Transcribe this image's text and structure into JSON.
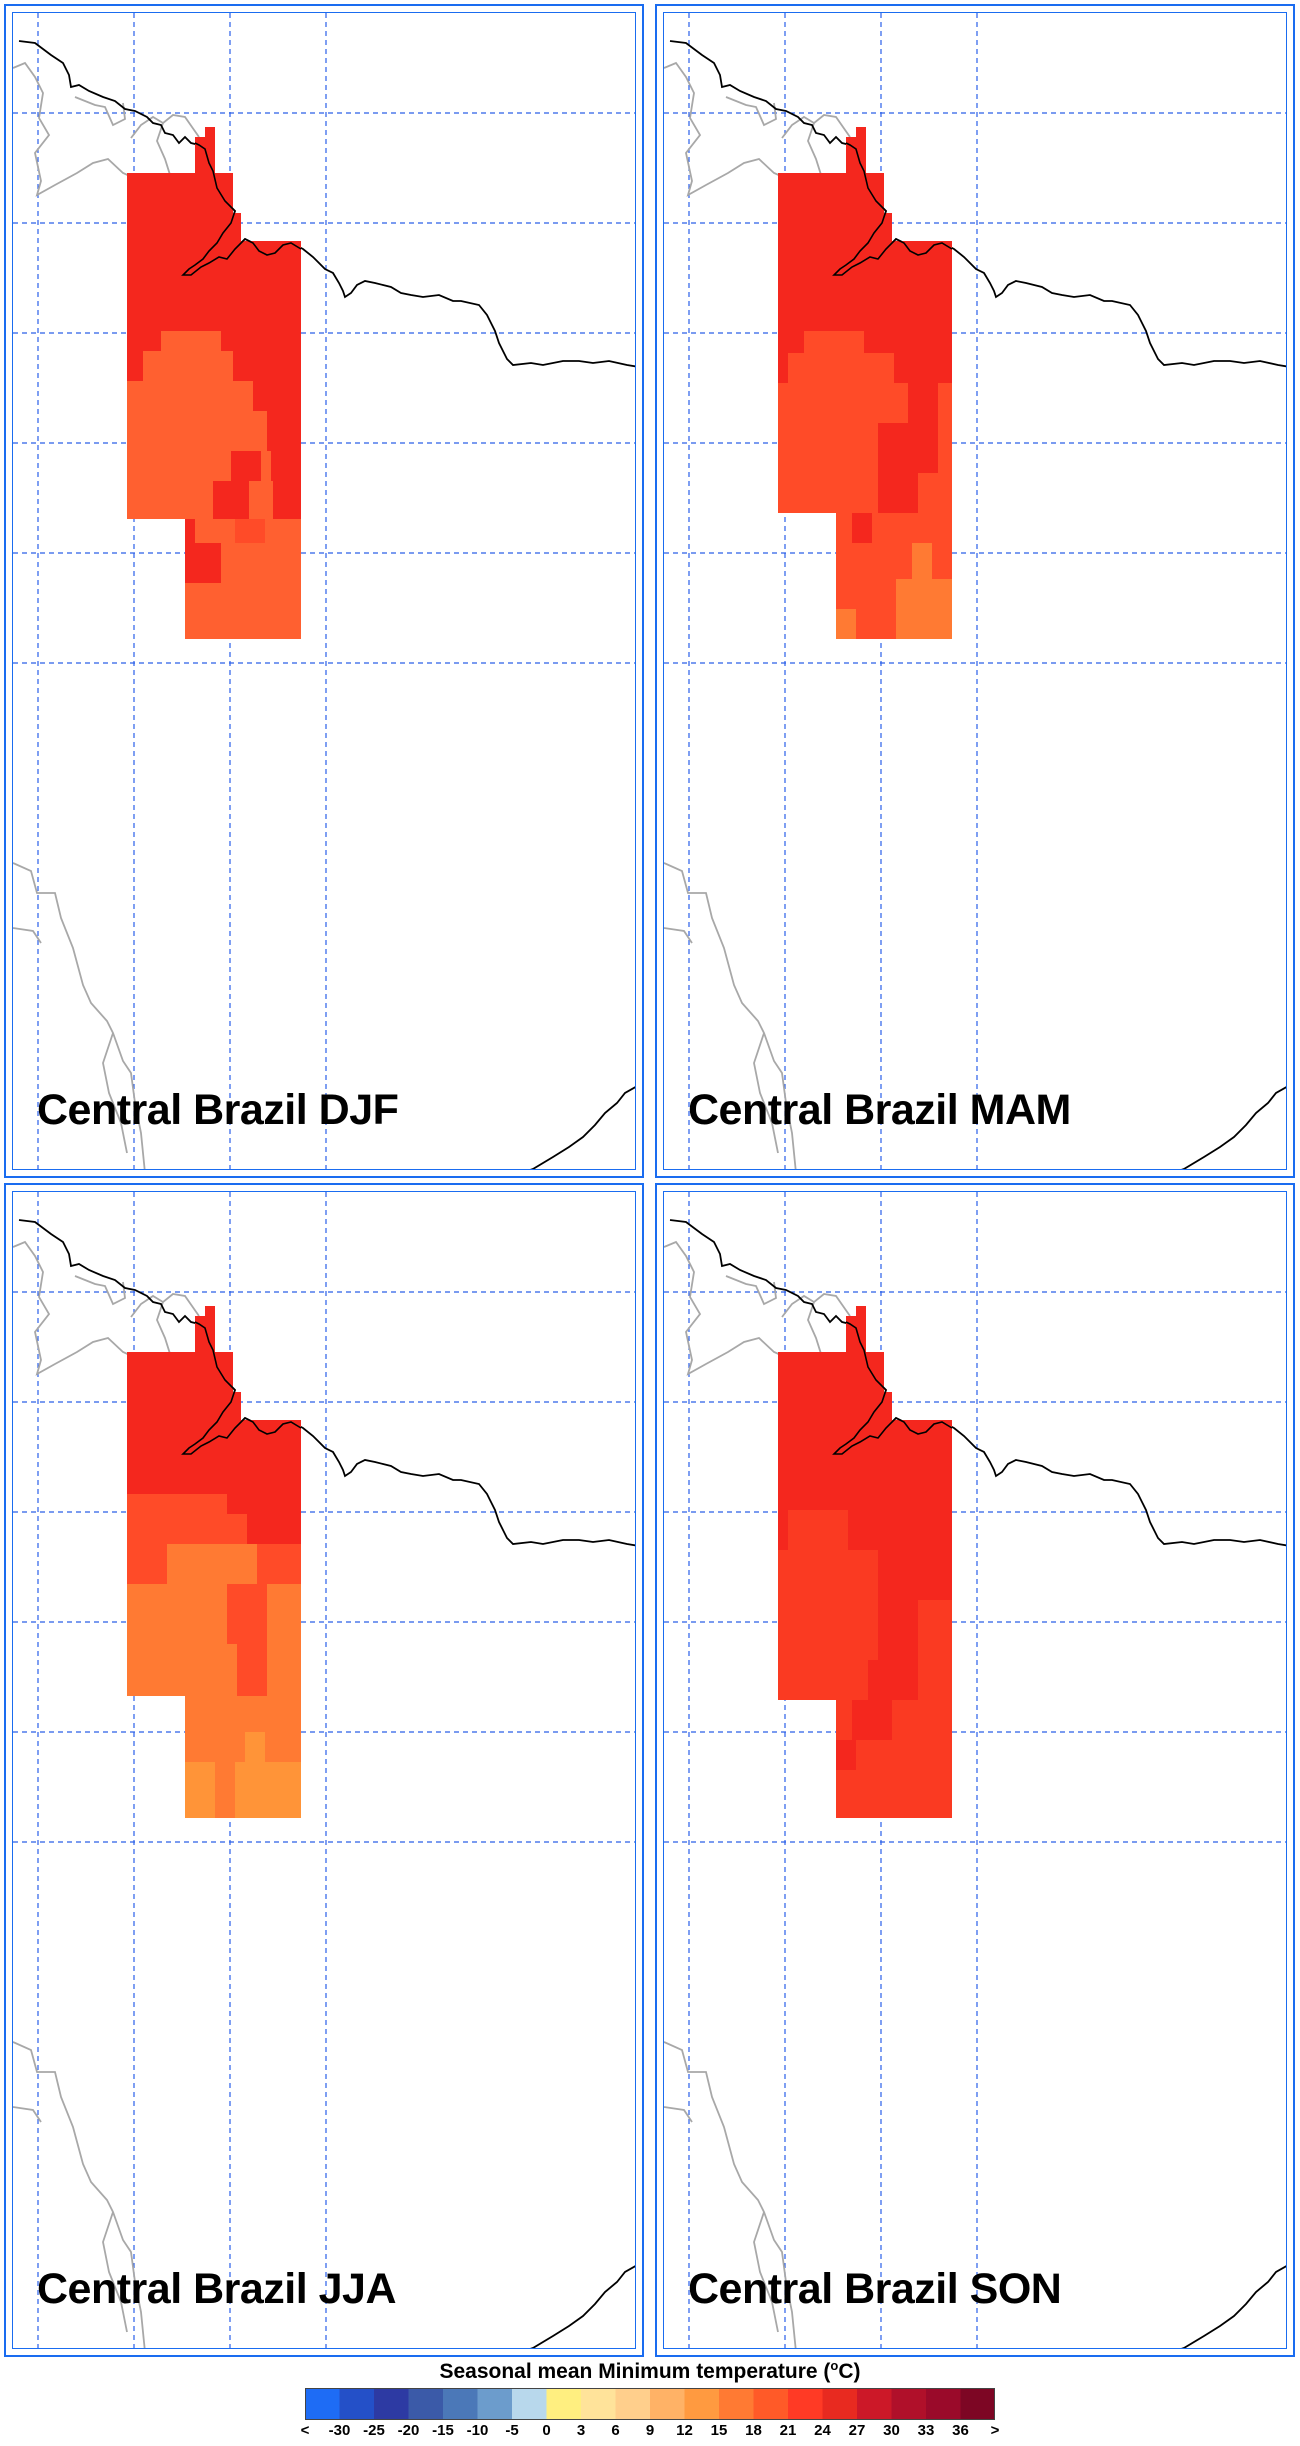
{
  "panels": [
    {
      "id": "djf",
      "title": "Central Brazil DJF"
    },
    {
      "id": "mam",
      "title": "Central Brazil MAM"
    },
    {
      "id": "jja",
      "title": "Central Brazil JJA"
    },
    {
      "id": "son",
      "title": "Central Brazil SON"
    }
  ],
  "colorbar": {
    "title": "Seasonal mean Minimum temperature (",
    "unit_sup": "o",
    "unit_tail": "C)",
    "labels": [
      "<",
      "-30",
      "-25",
      "-20",
      "-15",
      "-10",
      "-5",
      "0",
      "3",
      "6",
      "9",
      "12",
      "15",
      "18",
      "21",
      "24",
      "27",
      "30",
      "33",
      "36",
      ">"
    ],
    "colors": [
      "#1e6cf5",
      "#2450c8",
      "#2d3aa3",
      "#3b5aa8",
      "#4b78b8",
      "#6c9ccc",
      "#b8d8ec",
      "#ffef80",
      "#ffe39a",
      "#ffcf8c",
      "#ffb266",
      "#ff9a40",
      "#ff7a33",
      "#ff5a28",
      "#ff3a25",
      "#e82a20",
      "#cc1828",
      "#b0102a",
      "#9a0a2a",
      "#7d0624"
    ]
  },
  "map_colors": {
    "c27": "#f4271e",
    "c24": "#fa3a22",
    "c21": "#ff4b28",
    "c18": "#ff6030",
    "c15": "#ff7a33",
    "c12": "#ff9438",
    "grid": "#2a5fe8",
    "coast": "#000000",
    "border": "#a8a8a8"
  }
}
